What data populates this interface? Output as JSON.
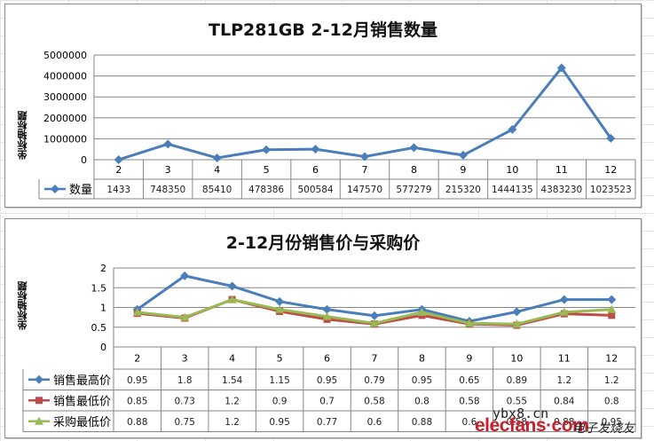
{
  "chart_data": [
    {
      "type": "line",
      "title": "TLP281GB  2-12月销售数量",
      "ylabel": "坐标轴标题",
      "xlabel": "",
      "categories": [
        "2",
        "3",
        "4",
        "5",
        "6",
        "7",
        "8",
        "9",
        "10",
        "11",
        "12"
      ],
      "y_ticks": [
        "5000000",
        "4000000",
        "3000000",
        "2000000",
        "1000000",
        "0"
      ],
      "ylim": [
        0,
        5000000
      ],
      "grid": true,
      "legend_position": "data-table",
      "series": [
        {
          "name": "数量",
          "color": "#4a7ebb",
          "marker": "diamond",
          "values": [
            1433,
            748350,
            85410,
            478386,
            500584,
            147570,
            577279,
            215320,
            1444135,
            4383230,
            1023523
          ]
        }
      ]
    },
    {
      "type": "line",
      "title": "2-12月份销售价与采购价",
      "ylabel": "坐标轴标题",
      "xlabel": "",
      "categories": [
        "2",
        "3",
        "4",
        "5",
        "6",
        "7",
        "8",
        "9",
        "10",
        "11",
        "12"
      ],
      "y_ticks": [
        "2",
        "1.5",
        "1",
        "0.5",
        "0"
      ],
      "ylim": [
        0,
        2
      ],
      "grid": true,
      "legend_position": "data-table",
      "series": [
        {
          "name": "销售最高价",
          "color": "#4a7ebb",
          "marker": "diamond",
          "values": [
            0.95,
            1.8,
            1.54,
            1.15,
            0.95,
            0.79,
            0.95,
            0.65,
            0.89,
            1.2,
            1.2
          ]
        },
        {
          "name": "销售最低价",
          "color": "#be4b48",
          "marker": "square",
          "values": [
            0.85,
            0.73,
            1.2,
            0.9,
            0.7,
            0.58,
            0.8,
            0.58,
            0.55,
            0.84,
            0.8
          ]
        },
        {
          "name": "采购最低价",
          "color": "#98b954",
          "marker": "triangle",
          "values": [
            0.88,
            0.75,
            1.2,
            0.95,
            0.77,
            0.6,
            0.88,
            0.6,
            0.58,
            0.88,
            0.95
          ]
        }
      ]
    }
  ],
  "table1": {
    "legend_label": "数量",
    "cells": [
      "1433",
      "748350",
      "85410",
      "478386",
      "500584",
      "147570",
      "577279",
      "215320",
      "1444135",
      "4383230",
      "1023523"
    ]
  },
  "table2": {
    "rows": [
      {
        "label": "销售最高价",
        "cells": [
          "0.95",
          "1.8",
          "1.54",
          "1.15",
          "0.95",
          "0.79",
          "0.95",
          "0.65",
          "0.89",
          "1.2",
          "1.2"
        ]
      },
      {
        "label": "销售最低价",
        "cells": [
          "0.85",
          "0.73",
          "1.2",
          "0.9",
          "0.7",
          "0.58",
          "0.8",
          "0.58",
          "0.55",
          "0.84",
          "0.8"
        ]
      },
      {
        "label": "采购最低价",
        "cells": [
          "0.88",
          "0.75",
          "1.2",
          "0.95",
          "0.77",
          "0.6",
          "0.88",
          "0.6",
          "0.58",
          "0.88",
          "0.95"
        ]
      }
    ]
  },
  "watermark": {
    "line1": "ybx8.cn",
    "line2": "elecfans·com",
    "line3": "电子发烧友"
  }
}
